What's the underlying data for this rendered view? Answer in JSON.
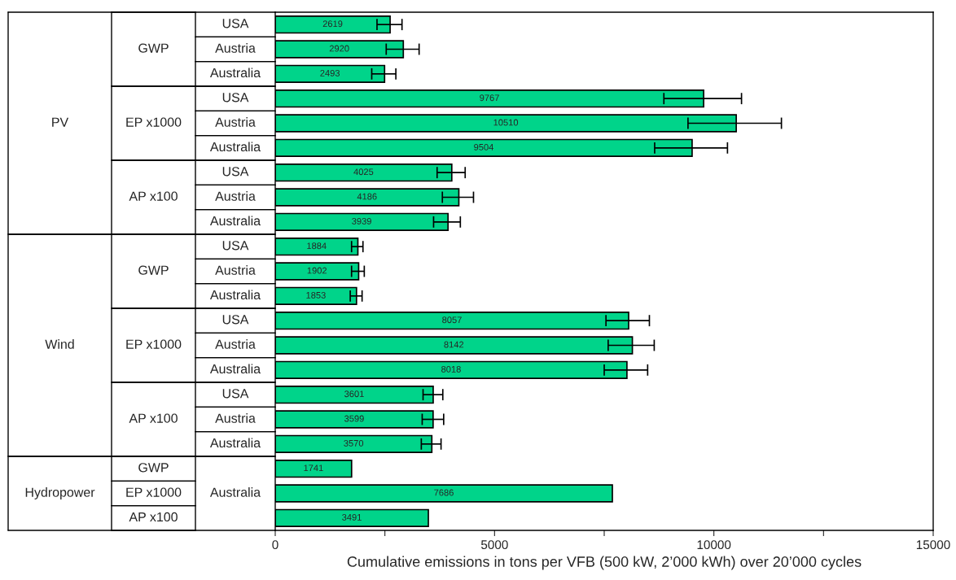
{
  "chart_data": {
    "type": "bar",
    "orientation": "horizontal",
    "xlabel": "Cumulative emissions in tons per VFB (500 kW, 2’000 kWh) over 20’000 cycles",
    "categories": [
      "USA",
      "Austria",
      "Australia",
      "USA",
      "Austria",
      "Australia",
      "USA",
      "Austria",
      "Australia",
      "USA",
      "Austria",
      "Australia",
      "USA",
      "Austria",
      "Australia",
      "USA",
      "Austria",
      "Australia",
      null,
      "Australia",
      null
    ],
    "values": [
      2619,
      2920,
      2493,
      9767,
      10510,
      9504,
      4025,
      4186,
      3939,
      1884,
      1902,
      1853,
      8057,
      8142,
      8018,
      3601,
      3599,
      3570,
      1741,
      7686,
      3491
    ],
    "errors": [
      [
        2320,
        2890
      ],
      [
        2530,
        3280
      ],
      [
        2200,
        2750
      ],
      [
        8860,
        10630
      ],
      [
        9410,
        11540
      ],
      [
        8650,
        10310
      ],
      [
        3690,
        4330
      ],
      [
        3810,
        4520
      ],
      [
        3610,
        4220
      ],
      [
        1740,
        2000
      ],
      [
        1740,
        2030
      ],
      [
        1710,
        1980
      ],
      [
        7540,
        8530
      ],
      [
        7590,
        8640
      ],
      [
        7500,
        8490
      ],
      [
        3370,
        3820
      ],
      [
        3350,
        3840
      ],
      [
        3330,
        3780
      ],
      null,
      null,
      null
    ],
    "color": "#00d48a",
    "data_labels": true,
    "annotations": [
      "PV",
      "Wind",
      "Hydropower",
      "GWP",
      "EP x1000",
      "AP x100",
      "GWP",
      "EP x1000",
      "AP x100",
      "GWP",
      "EP x1000",
      "AP x100"
    ],
    "xlim": [
      0,
      15000
    ],
    "xticks": [
      0,
      {
        "value": 2500,
        "label": null
      },
      5000,
      {
        "value": 7500,
        "label": null
      },
      10000,
      {
        "value": 12500,
        "label": null
      },
      15000
    ],
    "grid": false,
    "legend": false
  }
}
